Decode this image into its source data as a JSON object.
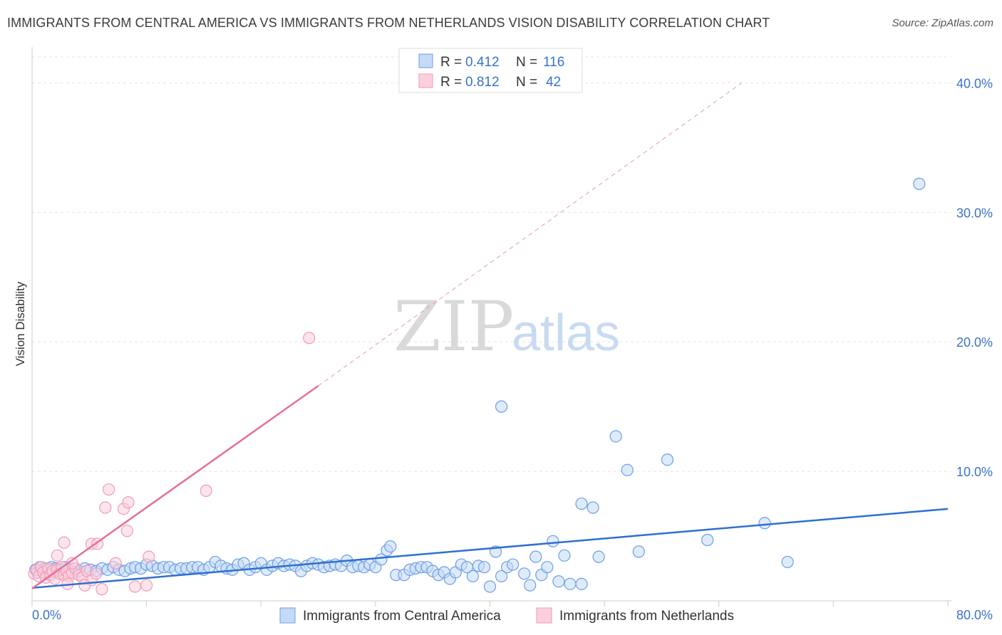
{
  "header": {
    "title": "IMMIGRANTS FROM CENTRAL AMERICA VS IMMIGRANTS FROM NETHERLANDS VISION DISABILITY CORRELATION CHART",
    "source": "Source: ZipAtlas.com"
  },
  "watermark": {
    "zip": "ZIP",
    "atlas": "atlas"
  },
  "legend": {
    "r_label": "R =",
    "n_label": "N =",
    "series": [
      {
        "r": "0.412",
        "n": "116"
      },
      {
        "r": "0.812",
        "n": "42"
      }
    ]
  },
  "bottom_legend": [
    "Immigrants from Central America",
    "Immigrants from Netherlands"
  ],
  "chart_data": {
    "type": "scatter",
    "title": "IMMIGRANTS FROM CENTRAL AMERICA VS IMMIGRANTS FROM NETHERLANDS VISION DISABILITY CORRELATION CHART",
    "xlabel": "",
    "ylabel": "Vision Disability",
    "xlim": [
      0,
      80
    ],
    "ylim": [
      0,
      42
    ],
    "x_tick_labels": [
      "0.0%",
      "80.0%"
    ],
    "y_ticks": [
      10,
      20,
      30,
      40
    ],
    "y_tick_labels": [
      "10.0%",
      "20.0%",
      "30.0%",
      "40.0%"
    ],
    "grid": true,
    "legend_position": "top-center",
    "colors": {
      "central_america": "#6b9ee6",
      "netherlands": "#f29ab5",
      "blue_line": "#2f6fd0",
      "pink_line": "#e4709a"
    },
    "series": [
      {
        "name": "Immigrants from Central America",
        "r": 0.412,
        "n": 116,
        "points": [
          [
            0.3,
            2.4
          ],
          [
            0.5,
            2.2
          ],
          [
            0.7,
            2.6
          ],
          [
            0.9,
            2.3
          ],
          [
            1.1,
            2.5
          ],
          [
            1.3,
            2.1
          ],
          [
            1.5,
            2.4
          ],
          [
            1.7,
            2.6
          ],
          [
            1.9,
            2.2
          ],
          [
            2.1,
            2.5
          ],
          [
            2.3,
            2.3
          ],
          [
            2.6,
            2.4
          ],
          [
            2.9,
            2.6
          ],
          [
            3.3,
            2.4
          ],
          [
            3.7,
            2.5
          ],
          [
            4.1,
            2.3
          ],
          [
            4.6,
            2.5
          ],
          [
            5.1,
            2.4
          ],
          [
            5.6,
            2.3
          ],
          [
            6.1,
            2.5
          ],
          [
            6.6,
            2.4
          ],
          [
            7.1,
            2.6
          ],
          [
            7.6,
            2.4
          ],
          [
            8.1,
            2.3
          ],
          [
            8.6,
            2.5
          ],
          [
            9.0,
            2.6
          ],
          [
            9.5,
            2.5
          ],
          [
            10.0,
            2.8
          ],
          [
            10.5,
            2.7
          ],
          [
            11.0,
            2.5
          ],
          [
            11.5,
            2.6
          ],
          [
            12.0,
            2.6
          ],
          [
            12.5,
            2.4
          ],
          [
            13.0,
            2.5
          ],
          [
            13.5,
            2.5
          ],
          [
            14.0,
            2.6
          ],
          [
            14.5,
            2.6
          ],
          [
            15.0,
            2.4
          ],
          [
            15.5,
            2.6
          ],
          [
            16.0,
            3.0
          ],
          [
            16.5,
            2.7
          ],
          [
            17.0,
            2.5
          ],
          [
            17.5,
            2.4
          ],
          [
            18.0,
            2.8
          ],
          [
            18.5,
            2.9
          ],
          [
            19.0,
            2.4
          ],
          [
            19.5,
            2.6
          ],
          [
            20.0,
            2.9
          ],
          [
            20.5,
            2.4
          ],
          [
            21.0,
            2.7
          ],
          [
            21.5,
            2.9
          ],
          [
            22.0,
            2.7
          ],
          [
            22.5,
            2.8
          ],
          [
            23.0,
            2.7
          ],
          [
            23.5,
            2.3
          ],
          [
            24.0,
            2.7
          ],
          [
            24.5,
            2.9
          ],
          [
            25.0,
            2.8
          ],
          [
            25.5,
            2.6
          ],
          [
            26.0,
            2.7
          ],
          [
            26.5,
            2.8
          ],
          [
            27.0,
            2.7
          ],
          [
            27.5,
            3.1
          ],
          [
            28.0,
            2.6
          ],
          [
            28.5,
            2.7
          ],
          [
            29.0,
            2.6
          ],
          [
            29.5,
            2.8
          ],
          [
            30.0,
            2.6
          ],
          [
            30.5,
            3.2
          ],
          [
            31.0,
            3.9
          ],
          [
            31.3,
            4.2
          ],
          [
            31.8,
            2.0
          ],
          [
            32.5,
            2.0
          ],
          [
            33.0,
            2.4
          ],
          [
            33.5,
            2.5
          ],
          [
            34.0,
            2.6
          ],
          [
            34.5,
            2.6
          ],
          [
            35.0,
            2.3
          ],
          [
            35.5,
            2.0
          ],
          [
            36.0,
            2.2
          ],
          [
            36.5,
            1.7
          ],
          [
            37.0,
            2.2
          ],
          [
            37.5,
            2.8
          ],
          [
            38.0,
            2.6
          ],
          [
            38.5,
            1.9
          ],
          [
            39.0,
            2.7
          ],
          [
            39.5,
            2.6
          ],
          [
            40.0,
            1.1
          ],
          [
            40.5,
            3.8
          ],
          [
            41.0,
            1.9
          ],
          [
            41.5,
            2.6
          ],
          [
            42.0,
            2.8
          ],
          [
            43.0,
            2.1
          ],
          [
            43.5,
            1.2
          ],
          [
            44.0,
            3.4
          ],
          [
            44.5,
            2.0
          ],
          [
            45.0,
            2.6
          ],
          [
            45.5,
            4.6
          ],
          [
            46.0,
            1.5
          ],
          [
            46.5,
            3.5
          ],
          [
            47.0,
            1.3
          ],
          [
            48.0,
            1.3
          ],
          [
            49.5,
            3.4
          ],
          [
            53.0,
            3.8
          ],
          [
            59.0,
            4.7
          ],
          [
            66.0,
            3.0
          ],
          [
            48.0,
            7.5
          ],
          [
            49.0,
            7.2
          ],
          [
            41.0,
            15.0
          ],
          [
            51.0,
            12.7
          ],
          [
            52.0,
            10.1
          ],
          [
            55.5,
            10.9
          ],
          [
            64.0,
            6.0
          ],
          [
            77.5,
            32.2
          ]
        ],
        "trend_line": {
          "x": [
            0,
            80
          ],
          "y": [
            1.0,
            7.1
          ]
        }
      },
      {
        "name": "Immigrants from Netherlands",
        "r": 0.812,
        "n": 42,
        "points": [
          [
            0.2,
            2.1
          ],
          [
            0.4,
            2.4
          ],
          [
            0.6,
            1.9
          ],
          [
            0.8,
            2.6
          ],
          [
            1.0,
            2.2
          ],
          [
            1.2,
            1.8
          ],
          [
            1.4,
            2.5
          ],
          [
            1.6,
            2.0
          ],
          [
            1.8,
            2.3
          ],
          [
            2.0,
            1.7
          ],
          [
            2.2,
            2.4
          ],
          [
            2.4,
            2.1
          ],
          [
            2.6,
            2.6
          ],
          [
            2.8,
            2.0
          ],
          [
            3.0,
            2.3
          ],
          [
            3.2,
            1.9
          ],
          [
            3.5,
            2.2
          ],
          [
            3.8,
            2.5
          ],
          [
            4.1,
            2.0
          ],
          [
            4.4,
            1.8
          ],
          [
            4.8,
            2.3
          ],
          [
            5.2,
            1.6
          ],
          [
            5.6,
            2.1
          ],
          [
            2.2,
            3.5
          ],
          [
            2.8,
            4.5
          ],
          [
            3.1,
            1.3
          ],
          [
            3.5,
            2.9
          ],
          [
            4.6,
            1.2
          ],
          [
            5.2,
            4.4
          ],
          [
            5.7,
            4.4
          ],
          [
            6.1,
            0.9
          ],
          [
            6.4,
            7.2
          ],
          [
            6.7,
            8.6
          ],
          [
            7.3,
            2.9
          ],
          [
            8.0,
            7.1
          ],
          [
            8.3,
            5.4
          ],
          [
            8.4,
            7.6
          ],
          [
            9.0,
            1.1
          ],
          [
            10.0,
            1.2
          ],
          [
            10.2,
            3.4
          ],
          [
            15.2,
            8.5
          ],
          [
            24.2,
            20.3
          ]
        ],
        "trend_line": {
          "x": [
            0,
            25
          ],
          "y": [
            0.95,
            16.6
          ]
        },
        "trend_extension": {
          "x": [
            25,
            62
          ],
          "y": [
            16.6,
            40.0
          ]
        }
      }
    ]
  }
}
